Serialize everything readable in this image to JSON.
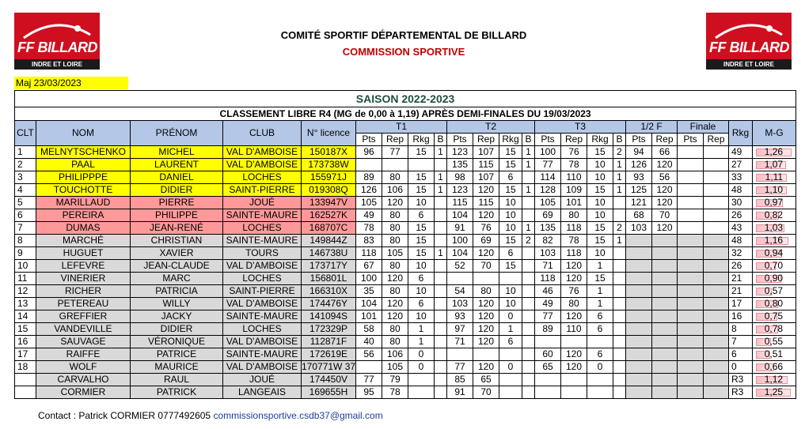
{
  "header": {
    "logo_text": "FF BILLARD",
    "logo_sub": "INDRE ET LOIRE",
    "title": "COMITÉ SPORTIF DÉPARTEMENTAL DE BILLARD",
    "subtitle": "COMMISSION SPORTIVE",
    "maj": "Maj  23/03/2023"
  },
  "table": {
    "season": "SAISON 2022-2023",
    "title": "CLASSEMENT LIBRE R4 (MG de 0,00 à 1,19) APRÈS DEMI-FINALES DU 19/03/2023",
    "col_clt": "CLT",
    "col_nom": "NOM",
    "col_prenom": "PRÉNOM",
    "col_club": "CLUB",
    "col_licence": "N° licence",
    "col_t1": "T1",
    "col_t2": "T2",
    "col_t3": "T3",
    "col_half": "1/2 F",
    "col_final": "Finale",
    "col_rkg": "Rkg",
    "col_mg": "M-G",
    "sub_pts": "Pts",
    "sub_rep": "Rep",
    "sub_rkg": "Rkg",
    "sub_b": "B",
    "rows": [
      {
        "clt": "1",
        "nom": "MELNYTSCHENKO",
        "prenom": "MICHEL",
        "club": "VAL D'AMBOISE",
        "lic": "150187X",
        "t1": [
          "96",
          "77",
          "15",
          "1"
        ],
        "t2": [
          "123",
          "107",
          "15",
          "1"
        ],
        "t3": [
          "100",
          "76",
          "15",
          "2"
        ],
        "sf": [
          "94",
          "66"
        ],
        "fi": [
          "",
          ""
        ],
        "rkg": "49",
        "mg": "1,26",
        "hl": "y"
      },
      {
        "clt": "2",
        "nom": "PAAL",
        "prenom": "LAURENT",
        "club": "VAL D'AMBOISE",
        "lic": "173738W",
        "t1": [
          "",
          "",
          "",
          ""
        ],
        "t2": [
          "135",
          "115",
          "15",
          "1"
        ],
        "t3": [
          "77",
          "78",
          "10",
          "1"
        ],
        "sf": [
          "126",
          "120"
        ],
        "fi": [
          "",
          ""
        ],
        "rkg": "27",
        "mg": "1,07",
        "hl": "y"
      },
      {
        "clt": "3",
        "nom": "PHILIPPPE",
        "prenom": "DANIEL",
        "club": "LOCHES",
        "lic": "155971J",
        "t1": [
          "89",
          "80",
          "15",
          "1"
        ],
        "t2": [
          "98",
          "107",
          "6",
          ""
        ],
        "t3": [
          "114",
          "110",
          "10",
          "1"
        ],
        "sf": [
          "93",
          "56"
        ],
        "fi": [
          "",
          ""
        ],
        "rkg": "33",
        "mg": "1,11",
        "hl": "y"
      },
      {
        "clt": "4",
        "nom": "TOUCHOTTE",
        "prenom": "DIDIER",
        "club": "SAINT-PIERRE",
        "lic": "019308Q",
        "t1": [
          "126",
          "106",
          "15",
          "1"
        ],
        "t2": [
          "123",
          "120",
          "15",
          "1"
        ],
        "t3": [
          "128",
          "109",
          "15",
          "1"
        ],
        "sf": [
          "125",
          "120"
        ],
        "fi": [
          "",
          ""
        ],
        "rkg": "48",
        "mg": "1,10",
        "hl": "y"
      },
      {
        "clt": "5",
        "nom": "MARILLAUD",
        "prenom": "PIERRE",
        "club": "JOUÉ",
        "lic": "133947V",
        "t1": [
          "105",
          "120",
          "10",
          ""
        ],
        "t2": [
          "115",
          "115",
          "10",
          ""
        ],
        "t3": [
          "105",
          "101",
          "10",
          ""
        ],
        "sf": [
          "121",
          "120"
        ],
        "fi": [
          "",
          ""
        ],
        "rkg": "30",
        "mg": "0,97",
        "hl": "r"
      },
      {
        "clt": "6",
        "nom": "PEREIRA",
        "prenom": "PHILIPPE",
        "club": "SAINTE-MAURE",
        "lic": "162527K",
        "t1": [
          "49",
          "80",
          "6",
          ""
        ],
        "t2": [
          "104",
          "120",
          "10",
          ""
        ],
        "t3": [
          "69",
          "80",
          "10",
          ""
        ],
        "sf": [
          "68",
          "70"
        ],
        "fi": [
          "",
          ""
        ],
        "rkg": "26",
        "mg": "0,82",
        "hl": "r"
      },
      {
        "clt": "7",
        "nom": "DUMAS",
        "prenom": "JEAN-RENÉ",
        "club": "LOCHES",
        "lic": "168707C",
        "t1": [
          "78",
          "80",
          "15",
          ""
        ],
        "t2": [
          "91",
          "76",
          "10",
          "1"
        ],
        "t3": [
          "135",
          "118",
          "15",
          "2"
        ],
        "sf": [
          "103",
          "120"
        ],
        "fi": [
          "",
          ""
        ],
        "rkg": "43",
        "mg": "1,03",
        "hl": "r"
      },
      {
        "clt": "8",
        "nom": "MARCHÉ",
        "prenom": "CHRISTIAN",
        "club": "SAINTE-MAURE",
        "lic": "149844Z",
        "t1": [
          "83",
          "80",
          "15",
          ""
        ],
        "t2": [
          "100",
          "69",
          "15",
          "2"
        ],
        "t3": [
          "82",
          "78",
          "15",
          "1"
        ],
        "sf": [
          "",
          ""
        ],
        "fi": [
          "",
          ""
        ],
        "rkg": "48",
        "mg": "1,16",
        "hl": "g"
      },
      {
        "clt": "9",
        "nom": "HUGUET",
        "prenom": "XAVIER",
        "club": "TOURS",
        "lic": "146738U",
        "t1": [
          "118",
          "105",
          "15",
          "1"
        ],
        "t2": [
          "104",
          "120",
          "6",
          ""
        ],
        "t3": [
          "103",
          "118",
          "10",
          ""
        ],
        "sf": [
          "",
          ""
        ],
        "fi": [
          "",
          ""
        ],
        "rkg": "32",
        "mg": "0,94",
        "hl": "g"
      },
      {
        "clt": "10",
        "nom": "LEFEVRE",
        "prenom": "JEAN-CLAUDE",
        "club": "VAL D'AMBOISE",
        "lic": "173717Y",
        "t1": [
          "67",
          "80",
          "10",
          ""
        ],
        "t2": [
          "52",
          "70",
          "15",
          ""
        ],
        "t3": [
          "71",
          "120",
          "1",
          ""
        ],
        "sf": [
          "",
          ""
        ],
        "fi": [
          "",
          ""
        ],
        "rkg": "26",
        "mg": "0,70",
        "hl": "g"
      },
      {
        "clt": "11",
        "nom": "VINERIER",
        "prenom": "MARC",
        "club": "LOCHES",
        "lic": "156801L",
        "t1": [
          "100",
          "120",
          "6",
          ""
        ],
        "t2": [
          "",
          "",
          "",
          ""
        ],
        "t3": [
          "118",
          "120",
          "15",
          ""
        ],
        "sf": [
          "",
          ""
        ],
        "fi": [
          "",
          ""
        ],
        "rkg": "21",
        "mg": "0,90",
        "hl": "g"
      },
      {
        "clt": "12",
        "nom": "RICHER",
        "prenom": "PATRICIA",
        "club": "SAINT-PIERRE",
        "lic": "166310X",
        "t1": [
          "35",
          "80",
          "10",
          ""
        ],
        "t2": [
          "54",
          "80",
          "10",
          ""
        ],
        "t3": [
          "46",
          "76",
          "1",
          ""
        ],
        "sf": [
          "",
          ""
        ],
        "fi": [
          "",
          ""
        ],
        "rkg": "21",
        "mg": "0,57",
        "hl": "g"
      },
      {
        "clt": "13",
        "nom": "PETEREAU",
        "prenom": "WILLY",
        "club": "VAL D'AMBOISE",
        "lic": "174476Y",
        "t1": [
          "104",
          "120",
          "6",
          ""
        ],
        "t2": [
          "103",
          "120",
          "10",
          ""
        ],
        "t3": [
          "49",
          "80",
          "1",
          ""
        ],
        "sf": [
          "",
          ""
        ],
        "fi": [
          "",
          ""
        ],
        "rkg": "17",
        "mg": "0,80",
        "hl": "g"
      },
      {
        "clt": "14",
        "nom": "GREFFIER",
        "prenom": "JACKY",
        "club": "SAINTE-MAURE",
        "lic": "141094S",
        "t1": [
          "101",
          "120",
          "10",
          ""
        ],
        "t2": [
          "93",
          "120",
          "0",
          ""
        ],
        "t3": [
          "77",
          "120",
          "6",
          ""
        ],
        "sf": [
          "",
          ""
        ],
        "fi": [
          "",
          ""
        ],
        "rkg": "16",
        "mg": "0,75",
        "hl": "g"
      },
      {
        "clt": "15",
        "nom": "VANDEVILLE",
        "prenom": "DIDIER",
        "club": "LOCHES",
        "lic": "172329P",
        "t1": [
          "58",
          "80",
          "1",
          ""
        ],
        "t2": [
          "97",
          "120",
          "1",
          ""
        ],
        "t3": [
          "89",
          "110",
          "6",
          ""
        ],
        "sf": [
          "",
          ""
        ],
        "fi": [
          "",
          ""
        ],
        "rkg": "8",
        "mg": "0,78",
        "hl": "g"
      },
      {
        "clt": "16",
        "nom": "SAUVAGE",
        "prenom": "VÉRONIQUE",
        "club": "VAL D'AMBOISE",
        "lic": "112871F",
        "t1": [
          "40",
          "80",
          "1",
          ""
        ],
        "t2": [
          "71",
          "120",
          "6",
          ""
        ],
        "t3": [
          "",
          "",
          "",
          ""
        ],
        "sf": [
          "",
          ""
        ],
        "fi": [
          "",
          ""
        ],
        "rkg": "7",
        "mg": "0,55",
        "hl": "g"
      },
      {
        "clt": "17",
        "nom": "RAIFFE",
        "prenom": "PATRICE",
        "club": "SAINTE-MAURE",
        "lic": "172619E",
        "t1": [
          "56",
          "106",
          "0",
          ""
        ],
        "t2": [
          "",
          "",
          "",
          ""
        ],
        "t3": [
          "60",
          "120",
          "6",
          ""
        ],
        "sf": [
          "",
          ""
        ],
        "fi": [
          "",
          ""
        ],
        "rkg": "6",
        "mg": "0,51",
        "hl": "g"
      },
      {
        "clt": "18",
        "nom": "WOLF",
        "prenom": "MAURICE",
        "club": "VAL D'AMBOISE",
        "lic": "170771W 37",
        "t1": [
          "",
          "105",
          "0",
          ""
        ],
        "t2": [
          "77",
          "120",
          "0",
          ""
        ],
        "t3": [
          "65",
          "120",
          "0",
          ""
        ],
        "sf": [
          "",
          ""
        ],
        "fi": [
          "",
          ""
        ],
        "rkg": "0",
        "mg": "0,66",
        "hl": "g"
      },
      {
        "clt": "",
        "nom": "CARVALHO",
        "prenom": "RAUL",
        "club": "JOUÉ",
        "lic": "174450V",
        "t1": [
          "77",
          "79",
          "",
          ""
        ],
        "t2": [
          "85",
          "65",
          "",
          ""
        ],
        "t3": [
          "",
          "",
          "",
          ""
        ],
        "sf": [
          "",
          ""
        ],
        "fi": [
          "",
          ""
        ],
        "rkg": "R3",
        "mg": "1,12",
        "hl": "g"
      },
      {
        "clt": "",
        "nom": "CORMIER",
        "prenom": "PATRICK",
        "club": "LANGEAIS",
        "lic": "169655H",
        "t1": [
          "95",
          "78",
          "",
          ""
        ],
        "t2": [
          "91",
          "70",
          "",
          ""
        ],
        "t3": [
          "",
          "",
          "",
          ""
        ],
        "sf": [
          "",
          ""
        ],
        "fi": [
          "",
          ""
        ],
        "rkg": "R3",
        "mg": "1,25",
        "hl": "g"
      }
    ]
  },
  "footer": {
    "contact": "Contact : Patrick CORMIER 0777492605 ",
    "email": "commissionsportive.csdb37@gmail.com"
  }
}
